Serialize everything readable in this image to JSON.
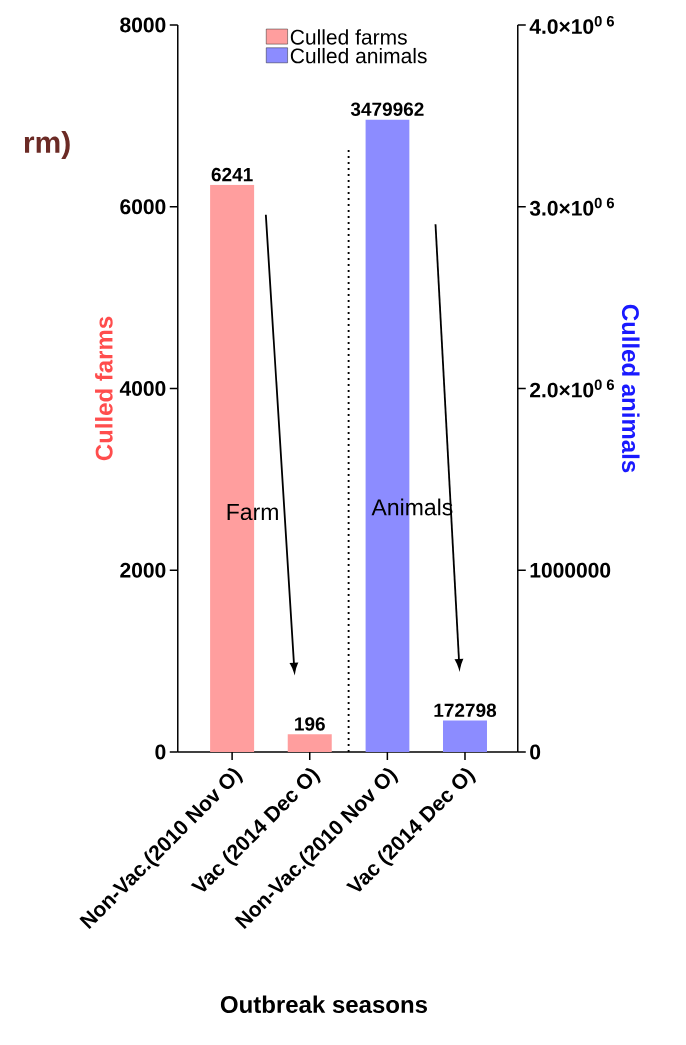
{
  "chart_data": {
    "type": "bar",
    "xlabel": "Outbreak seasons",
    "ylabel": "Culled farms",
    "y2label": "Culled animals",
    "categories": [
      "Non-Vac.(2010 Nov O)",
      "Vac (2014 Dec O)",
      "Non-Vac.(2010 Nov O)",
      "Vac (2014 Dec O)"
    ],
    "series": [
      {
        "name": "Culled farms",
        "color": "#ff9e9e",
        "values": [
          6241,
          196,
          null,
          null
        ]
      },
      {
        "name": "Culled animals",
        "color": "#8c8cff",
        "axis": "y2",
        "values": [
          null,
          null,
          3479962,
          172798
        ]
      }
    ],
    "ylim": [
      0,
      8000
    ],
    "yticks": [
      0,
      2000,
      4000,
      6000,
      8000
    ],
    "y2lim": [
      0,
      4000000
    ],
    "y2ticks": [
      0,
      1000000,
      {
        "value": 2000000,
        "label": "2.0×10$^{0 6}$"
      },
      {
        "value": 3000000,
        "label": "3.0×10$^{0 6}$"
      },
      {
        "value": 4000000,
        "label": "4.0×10$^{0 6}$"
      }
    ],
    "data_labels": true,
    "legend": "top",
    "grid": false,
    "annotations": [
      "rm)",
      "Farm",
      "Animals"
    ]
  }
}
